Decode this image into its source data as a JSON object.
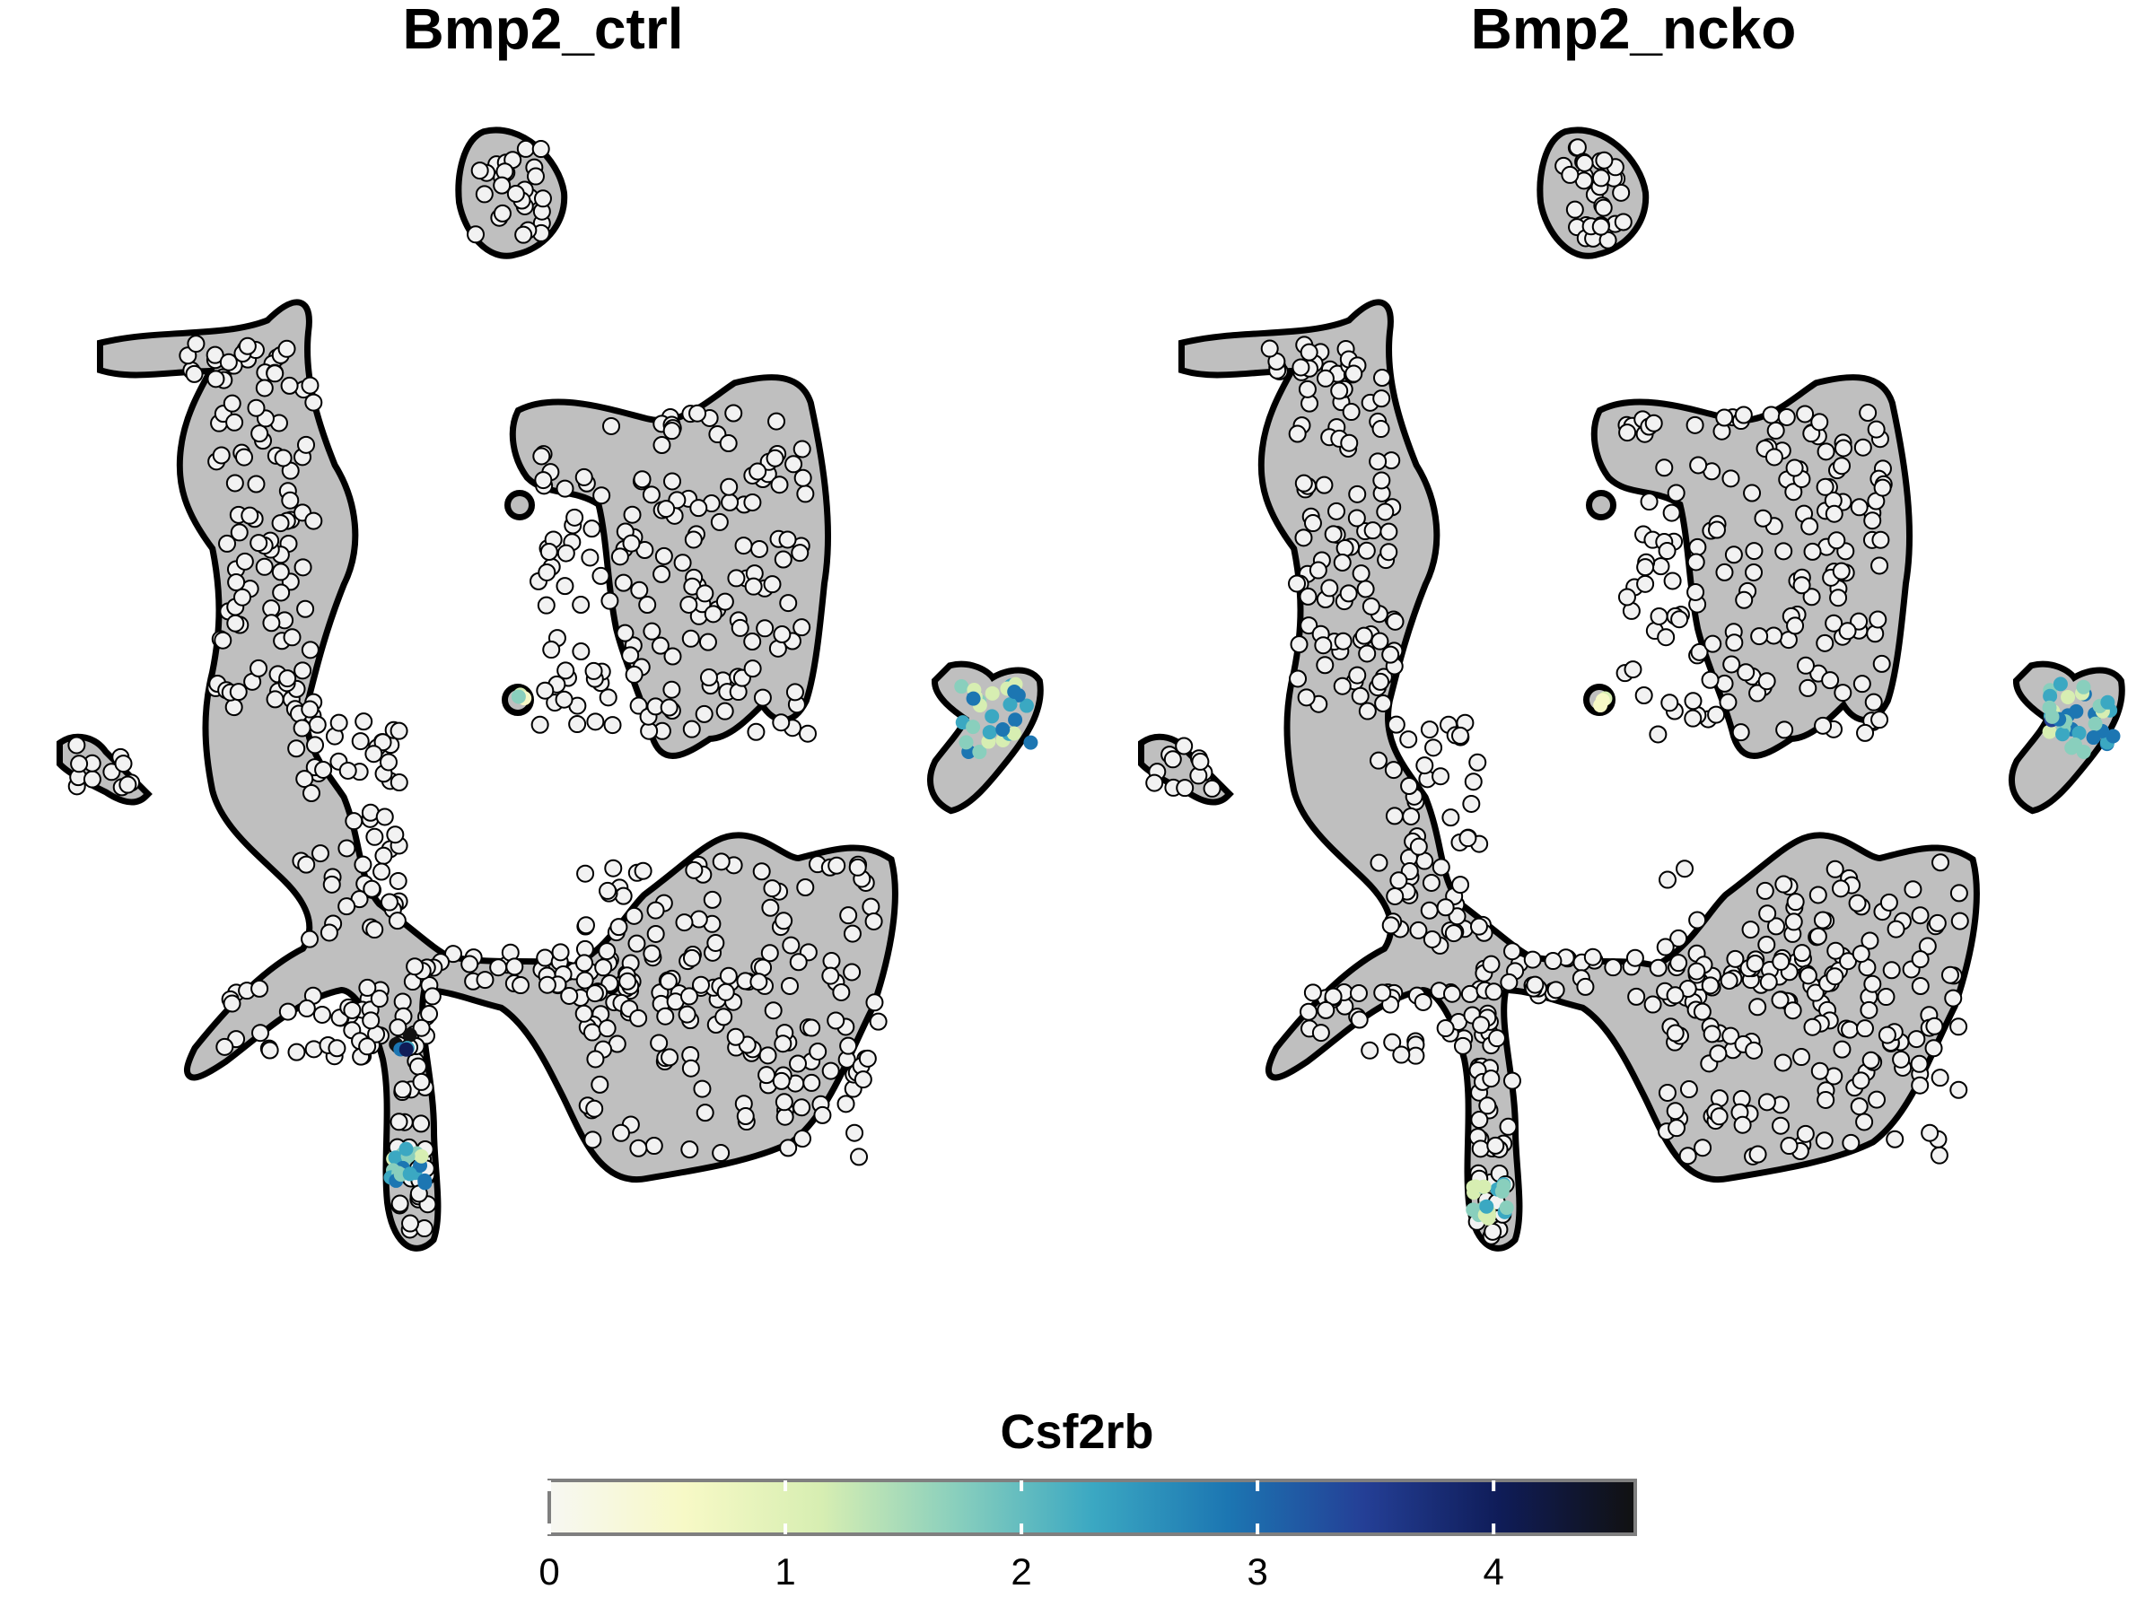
{
  "chart_data": {
    "type": "scatter",
    "description_kind": "umap-feature-plot",
    "panels": [
      {
        "title": "Bmp2_ctrl"
      },
      {
        "title": "Bmp2_ncko"
      }
    ],
    "feature": "Csf2rb",
    "colorbar": {
      "title": "Csf2rb",
      "min": 0,
      "max": 4.6,
      "ticks": [
        "0",
        "1",
        "2",
        "3",
        "4"
      ],
      "tick_values": [
        0,
        1,
        2,
        3,
        4
      ],
      "colors": [
        "#f7f7f2",
        "#f7f9c6",
        "#d7eeb2",
        "#89cfbd",
        "#3ba8c2",
        "#1c76b2",
        "#243f96",
        "#0f1c58",
        "#111111"
      ]
    },
    "colors": {
      "cell_fill": "#f2f2f2",
      "background_cells": "#bfbfbf",
      "outline": "#000000"
    }
  }
}
